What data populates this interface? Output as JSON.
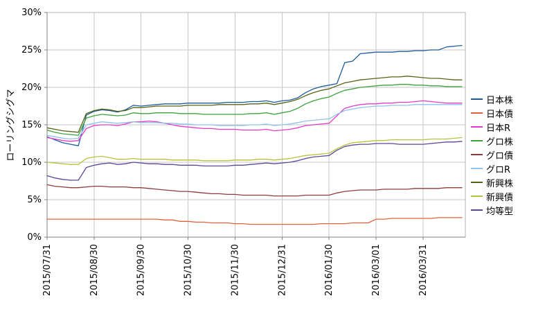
{
  "chart_data": {
    "type": "line",
    "title": "",
    "ylabel": "ローリングシグマ",
    "ylim": [
      0,
      30
    ],
    "grid": true,
    "legend_position": "right",
    "y_ticks": [
      {
        "value": 0,
        "label": "0%"
      },
      {
        "value": 5,
        "label": "5%"
      },
      {
        "value": 10,
        "label": "10%"
      },
      {
        "value": 15,
        "label": "15%"
      },
      {
        "value": 20,
        "label": "20%"
      },
      {
        "value": 25,
        "label": "25%"
      },
      {
        "value": 30,
        "label": "30%"
      }
    ],
    "x_domain_days": [
      0,
      267
    ],
    "x_ticks": [
      {
        "day": 0,
        "label": "2015/07/31"
      },
      {
        "day": 30,
        "label": "2015/08/30"
      },
      {
        "day": 60,
        "label": "2015/09/30"
      },
      {
        "day": 90,
        "label": "2015/10/30"
      },
      {
        "day": 120,
        "label": "2015/11/30"
      },
      {
        "day": 150,
        "label": "2015/12/31"
      },
      {
        "day": 180,
        "label": "2016/01/30"
      },
      {
        "day": 210,
        "label": "2016/03/01"
      },
      {
        "day": 240,
        "label": "2016/03/31"
      }
    ],
    "x_days": [
      0,
      5,
      10,
      15,
      20,
      25,
      30,
      35,
      40,
      45,
      50,
      55,
      60,
      65,
      70,
      75,
      80,
      85,
      90,
      95,
      100,
      105,
      110,
      115,
      120,
      125,
      130,
      135,
      140,
      145,
      150,
      155,
      160,
      165,
      170,
      175,
      180,
      185,
      190,
      195,
      200,
      205,
      210,
      215,
      220,
      225,
      230,
      235,
      240,
      245,
      250,
      255,
      260,
      265
    ],
    "series": [
      {
        "name": "日本株",
        "color": "#1E5C99",
        "values": [
          13.4,
          13.0,
          12.6,
          12.4,
          12.2,
          16.3,
          16.8,
          17.0,
          16.9,
          16.7,
          17.0,
          17.6,
          17.5,
          17.6,
          17.7,
          17.8,
          17.8,
          17.8,
          17.9,
          17.9,
          17.9,
          17.9,
          17.9,
          18.0,
          18.0,
          18.0,
          18.1,
          18.1,
          18.2,
          18.0,
          18.2,
          18.3,
          18.6,
          19.3,
          19.8,
          20.1,
          20.3,
          20.5,
          23.3,
          23.5,
          24.5,
          24.6,
          24.7,
          24.7,
          24.7,
          24.8,
          24.8,
          24.9,
          24.9,
          25.0,
          25.0,
          25.4,
          25.5,
          25.6
        ]
      },
      {
        "name": "日本債",
        "color": "#E2603C",
        "values": [
          2.4,
          2.4,
          2.4,
          2.4,
          2.4,
          2.4,
          2.4,
          2.4,
          2.4,
          2.4,
          2.4,
          2.4,
          2.4,
          2.4,
          2.4,
          2.3,
          2.3,
          2.1,
          2.1,
          2.0,
          2.0,
          1.9,
          1.9,
          1.9,
          1.8,
          1.8,
          1.7,
          1.7,
          1.7,
          1.7,
          1.7,
          1.7,
          1.7,
          1.7,
          1.7,
          1.8,
          1.8,
          1.8,
          1.8,
          1.9,
          1.9,
          1.9,
          2.4,
          2.4,
          2.5,
          2.5,
          2.5,
          2.5,
          2.5,
          2.5,
          2.6,
          2.6,
          2.6,
          2.6
        ]
      },
      {
        "name": "日本R",
        "color": "#E53AC8",
        "values": [
          13.3,
          13.1,
          12.9,
          12.8,
          12.9,
          14.5,
          14.9,
          15.0,
          15.0,
          14.9,
          15.1,
          15.4,
          15.4,
          15.5,
          15.4,
          15.2,
          15.0,
          14.8,
          14.7,
          14.6,
          14.5,
          14.5,
          14.4,
          14.4,
          14.4,
          14.3,
          14.3,
          14.3,
          14.4,
          14.2,
          14.3,
          14.4,
          14.6,
          14.9,
          15.0,
          15.1,
          15.2,
          16.2,
          17.2,
          17.5,
          17.7,
          17.8,
          17.8,
          17.9,
          17.9,
          18.0,
          18.0,
          18.1,
          18.2,
          18.1,
          18.0,
          17.9,
          17.9,
          17.9
        ]
      },
      {
        "name": "グロ株",
        "color": "#3DA13D",
        "values": [
          14.3,
          14.0,
          13.8,
          13.7,
          13.6,
          15.9,
          16.2,
          16.4,
          16.3,
          16.2,
          16.3,
          16.6,
          16.5,
          16.5,
          16.6,
          16.6,
          16.6,
          16.5,
          16.5,
          16.5,
          16.4,
          16.4,
          16.4,
          16.4,
          16.4,
          16.4,
          16.5,
          16.5,
          16.6,
          16.4,
          16.6,
          16.8,
          17.2,
          17.8,
          18.2,
          18.5,
          18.7,
          19.2,
          19.6,
          19.8,
          20.0,
          20.1,
          20.2,
          20.3,
          20.3,
          20.4,
          20.4,
          20.3,
          20.3,
          20.2,
          20.2,
          20.1,
          20.1,
          20.1
        ]
      },
      {
        "name": "グロ債",
        "color": "#8E3B3C",
        "values": [
          7.0,
          6.8,
          6.7,
          6.6,
          6.6,
          6.7,
          6.8,
          6.8,
          6.7,
          6.7,
          6.7,
          6.6,
          6.6,
          6.5,
          6.4,
          6.3,
          6.2,
          6.1,
          6.1,
          6.0,
          5.9,
          5.8,
          5.8,
          5.7,
          5.7,
          5.6,
          5.6,
          5.6,
          5.6,
          5.5,
          5.5,
          5.5,
          5.5,
          5.6,
          5.6,
          5.6,
          5.6,
          5.9,
          6.1,
          6.2,
          6.3,
          6.3,
          6.3,
          6.4,
          6.4,
          6.4,
          6.4,
          6.5,
          6.5,
          6.5,
          6.5,
          6.6,
          6.6,
          6.6
        ]
      },
      {
        "name": "グロR",
        "color": "#8FC3E8",
        "values": [
          13.6,
          13.4,
          13.2,
          13.1,
          13.2,
          15.0,
          15.2,
          15.4,
          15.3,
          15.2,
          15.3,
          15.4,
          15.3,
          15.3,
          15.3,
          15.2,
          15.2,
          15.1,
          15.1,
          15.0,
          15.0,
          15.0,
          14.9,
          14.9,
          14.9,
          14.9,
          15.0,
          15.0,
          15.1,
          14.9,
          15.0,
          15.1,
          15.3,
          15.5,
          15.6,
          15.7,
          15.8,
          16.4,
          16.9,
          17.1,
          17.3,
          17.4,
          17.5,
          17.5,
          17.6,
          17.6,
          17.6,
          17.7,
          17.7,
          17.7,
          17.7,
          17.7,
          17.7,
          17.7
        ]
      },
      {
        "name": "新興株",
        "color": "#566314",
        "values": [
          14.6,
          14.4,
          14.2,
          14.1,
          14.0,
          16.5,
          16.9,
          17.1,
          17.0,
          16.8,
          16.9,
          17.3,
          17.3,
          17.4,
          17.5,
          17.5,
          17.5,
          17.5,
          17.6,
          17.6,
          17.6,
          17.6,
          17.7,
          17.7,
          17.7,
          17.7,
          17.8,
          17.8,
          17.9,
          17.7,
          17.9,
          18.1,
          18.4,
          18.9,
          19.3,
          19.6,
          19.8,
          20.2,
          20.6,
          20.8,
          21.0,
          21.1,
          21.2,
          21.3,
          21.4,
          21.4,
          21.5,
          21.4,
          21.3,
          21.2,
          21.2,
          21.1,
          21.0,
          21.0
        ]
      },
      {
        "name": "新興債",
        "color": "#B6C33B",
        "values": [
          10.0,
          9.9,
          9.8,
          9.7,
          9.7,
          10.5,
          10.7,
          10.8,
          10.6,
          10.4,
          10.4,
          10.5,
          10.4,
          10.4,
          10.4,
          10.4,
          10.3,
          10.3,
          10.3,
          10.3,
          10.2,
          10.2,
          10.2,
          10.2,
          10.3,
          10.3,
          10.3,
          10.4,
          10.4,
          10.3,
          10.4,
          10.5,
          10.7,
          10.9,
          11.0,
          11.1,
          11.2,
          11.8,
          12.3,
          12.6,
          12.7,
          12.8,
          12.9,
          12.9,
          13.0,
          13.0,
          13.0,
          13.0,
          13.0,
          13.1,
          13.1,
          13.1,
          13.2,
          13.3
        ]
      },
      {
        "name": "均等型",
        "color": "#5C4697",
        "values": [
          8.2,
          7.9,
          7.7,
          7.6,
          7.6,
          9.3,
          9.6,
          9.8,
          9.9,
          9.7,
          9.8,
          10.0,
          9.9,
          9.8,
          9.8,
          9.7,
          9.7,
          9.6,
          9.6,
          9.6,
          9.5,
          9.5,
          9.5,
          9.5,
          9.6,
          9.6,
          9.7,
          9.8,
          9.9,
          9.8,
          9.9,
          10.0,
          10.2,
          10.5,
          10.7,
          10.8,
          10.9,
          11.6,
          12.1,
          12.3,
          12.4,
          12.4,
          12.5,
          12.5,
          12.5,
          12.4,
          12.4,
          12.4,
          12.4,
          12.5,
          12.6,
          12.7,
          12.7,
          12.8
        ]
      }
    ]
  }
}
